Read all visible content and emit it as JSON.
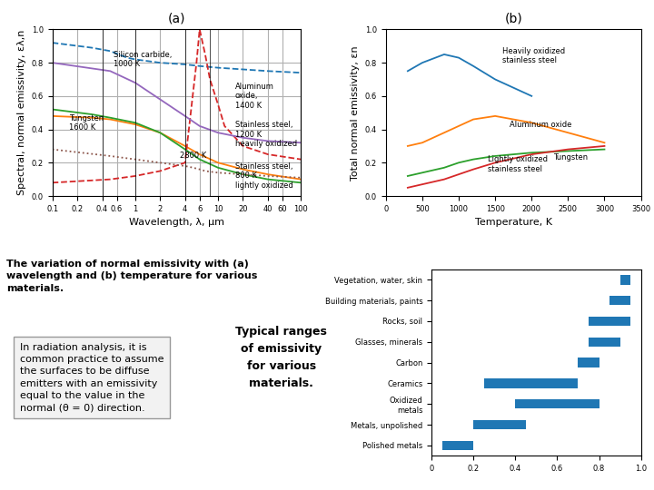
{
  "chart_data": [
    {
      "type": "line",
      "title": "(a)",
      "xlabel": "Wavelength, λ, μm",
      "ylabel": "Spectral, normal emissivity, ελ,n",
      "log": "x",
      "grid": true,
      "xlim": [
        0.1,
        100
      ],
      "ylim": [
        0,
        1.0
      ],
      "xticks": [
        0.1,
        0.2,
        0.4,
        0.6,
        1,
        2,
        4,
        6,
        10,
        20,
        40,
        60,
        100
      ],
      "yticks": [
        0.0,
        0.2,
        0.4,
        0.6,
        0.8,
        1.0
      ],
      "vlines": [
        0.4,
        1.0,
        4.0,
        8.0
      ],
      "series": [
        {
          "line_style": "dashed",
          "x": [
            0.1,
            0.3,
            0.5,
            0.8,
            1.0,
            2.0,
            4.0,
            6.0,
            10.0,
            20.0,
            40.0,
            100.0
          ],
          "values": [
            0.92,
            0.89,
            0.87,
            0.83,
            0.82,
            0.8,
            0.79,
            0.78,
            0.77,
            0.76,
            0.75,
            0.74
          ]
        },
        {
          "line_style": "solid",
          "x": [
            0.1,
            0.3,
            0.5,
            1.0,
            2.0,
            4.0,
            6.0,
            10.0,
            20.0,
            40.0,
            100.0
          ],
          "values": [
            0.48,
            0.47,
            0.46,
            0.43,
            0.38,
            0.3,
            0.25,
            0.2,
            0.16,
            0.13,
            0.1
          ]
        },
        {
          "line_style": "solid",
          "x": [
            0.1,
            0.3,
            0.5,
            1.0,
            2.0,
            4.0,
            6.0,
            10.0,
            20.0,
            40.0,
            100.0
          ],
          "values": [
            0.52,
            0.49,
            0.47,
            0.44,
            0.38,
            0.28,
            0.22,
            0.17,
            0.13,
            0.1,
            0.08
          ]
        },
        {
          "line_style": "dashed",
          "x": [
            0.1,
            0.5,
            1.0,
            2.0,
            4.0,
            5.5,
            6.0,
            7.0,
            8.0,
            10.0,
            12.0,
            20.0,
            40.0,
            100.0
          ],
          "values": [
            0.08,
            0.1,
            0.12,
            0.15,
            0.2,
            0.8,
            1.0,
            0.85,
            0.7,
            0.55,
            0.42,
            0.3,
            0.25,
            0.22
          ]
        },
        {
          "line_style": "solid",
          "x": [
            0.1,
            0.5,
            1.0,
            2.0,
            4.0,
            6.0,
            10.0,
            20.0,
            40.0,
            100.0
          ],
          "values": [
            0.8,
            0.75,
            0.68,
            0.58,
            0.48,
            0.42,
            0.38,
            0.35,
            0.33,
            0.32
          ]
        },
        {
          "line_style": "dotted",
          "x": [
            0.1,
            0.5,
            1.0,
            2.0,
            4.0,
            5.0,
            6.0,
            7.0,
            10.0,
            20.0,
            40.0,
            100.0
          ],
          "values": [
            0.28,
            0.24,
            0.22,
            0.2,
            0.18,
            0.17,
            0.16,
            0.15,
            0.14,
            0.13,
            0.12,
            0.11
          ]
        }
      ],
      "annotations": [
        {
          "text": "Silicon carbide,\n1000 K",
          "x": 0.55,
          "y": 0.82
        },
        {
          "text": "Tungsten\n1600 K",
          "x": 0.16,
          "y": 0.44
        },
        {
          "text": "Aluminum\noxide,\n1400 K",
          "x": 16.0,
          "y": 0.6
        },
        {
          "text": "Stainless steel,\n1200 K\nheavily oxidized",
          "x": 16.0,
          "y": 0.37
        },
        {
          "text": "2800 K",
          "x": 3.5,
          "y": 0.24
        },
        {
          "text": "Stainless steel,\n800 K\nlightly oxidized",
          "x": 16.0,
          "y": 0.12
        }
      ]
    },
    {
      "type": "line",
      "title": "(b)",
      "xlabel": "Temperature, K",
      "ylabel": "Total normal emissivity, εn",
      "grid": false,
      "xlim": [
        0,
        3500
      ],
      "ylim": [
        0,
        1.0
      ],
      "xticks": [
        0,
        500,
        1000,
        1500,
        2000,
        2500,
        3000,
        3500
      ],
      "yticks": [
        0.0,
        0.2,
        0.4,
        0.6,
        0.8,
        1.0
      ],
      "series": [
        {
          "line_style": "solid",
          "x": [
            300,
            500,
            800,
            1000,
            1200,
            1500,
            2000
          ],
          "values": [
            0.75,
            0.8,
            0.85,
            0.83,
            0.78,
            0.7,
            0.6
          ]
        },
        {
          "line_style": "solid",
          "x": [
            300,
            500,
            800,
            1000,
            1200,
            1500,
            2000,
            2500,
            3000
          ],
          "values": [
            0.3,
            0.32,
            0.38,
            0.42,
            0.46,
            0.48,
            0.44,
            0.38,
            0.32
          ]
        },
        {
          "line_style": "solid",
          "x": [
            300,
            500,
            800,
            1000,
            1200,
            1500,
            2000,
            2500,
            3000
          ],
          "values": [
            0.12,
            0.14,
            0.17,
            0.2,
            0.22,
            0.24,
            0.26,
            0.27,
            0.28
          ]
        },
        {
          "line_style": "solid",
          "x": [
            300,
            500,
            800,
            1000,
            1200,
            1500,
            2000,
            2500,
            3000
          ],
          "values": [
            0.05,
            0.07,
            0.1,
            0.13,
            0.16,
            0.2,
            0.25,
            0.28,
            0.3
          ]
        }
      ],
      "annotations": [
        {
          "text": "Heavily oxidized\nstainless steel",
          "x": 1600,
          "y": 0.84
        },
        {
          "text": "Aluminum oxide",
          "x": 1700,
          "y": 0.43
        },
        {
          "text": "Lightly oxidized\nstainless steel",
          "x": 1400,
          "y": 0.19
        },
        {
          "text": "Tungsten",
          "x": 2300,
          "y": 0.23
        }
      ]
    },
    {
      "type": "bar",
      "orientation": "horizontal",
      "title": "Typical ranges\nof emissivity\nfor various\nmaterials.",
      "categories": [
        "Vegetation, water, skin",
        "Building materials, paints",
        "Rocks, soil",
        "Glasses, minerals",
        "Carbon",
        "Ceramics",
        "Oxidized\nmetals",
        "Metals, unpolished",
        "Polished metals"
      ],
      "low": [
        0.9,
        0.85,
        0.75,
        0.75,
        0.7,
        0.25,
        0.4,
        0.2,
        0.05
      ],
      "high": [
        0.95,
        0.95,
        0.95,
        0.9,
        0.8,
        0.7,
        0.8,
        0.45,
        0.2
      ],
      "xlim": [
        0,
        1.0
      ],
      "xticks": [
        0,
        0.2,
        0.4,
        0.6,
        0.8,
        1.0
      ],
      "annotations": [
        {
          "text": "The variation of normal emissivity with (a)\nwavelength and (b) temperature for various\nmaterials."
        },
        {
          "text": "In radiation analysis, it is\ncommon practice to assume\nthe surfaces to be diffuse\nemitters with an emissivity\nequal to the value in the\nnormal (θ = 0) direction."
        }
      ]
    }
  ]
}
